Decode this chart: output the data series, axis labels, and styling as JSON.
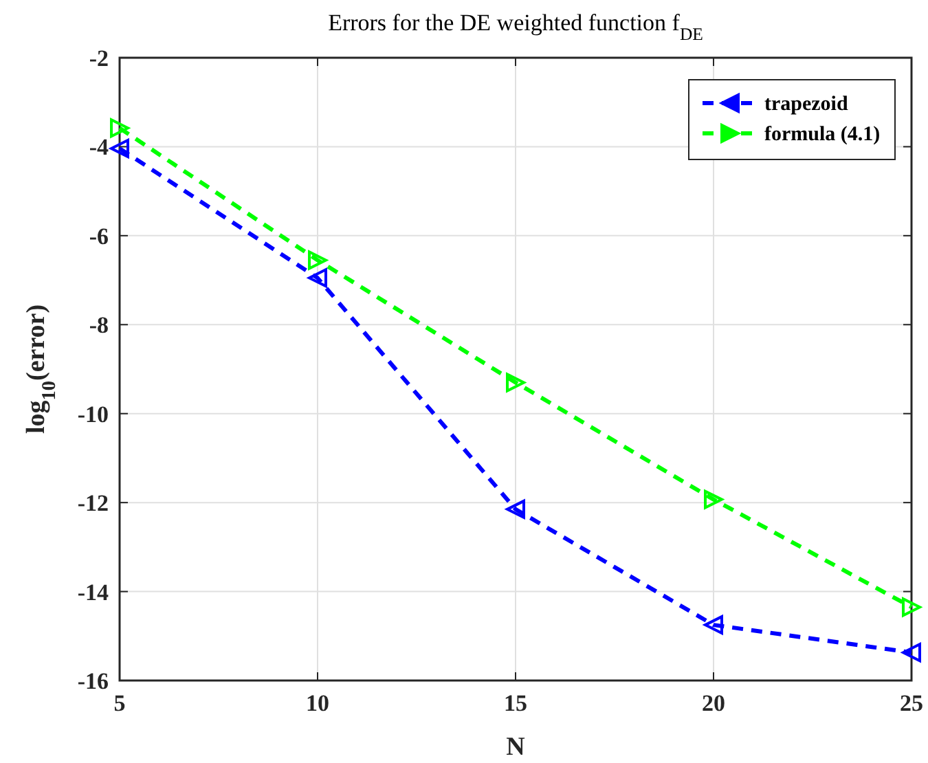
{
  "chart_data": {
    "type": "line",
    "title": "Errors for the DE weighted function f$_{DE}$",
    "xlabel": "N",
    "ylabel": "log$_{10}$(error)",
    "x": [
      5,
      10,
      15,
      20,
      25
    ],
    "series": [
      {
        "name": "trapezoid",
        "color": "#0000ff",
        "values": [
          -4.04,
          -6.95,
          -12.15,
          -14.75,
          -15.37
        ]
      },
      {
        "name": "formula (4.1)",
        "color": "#00ff00",
        "values": [
          -3.58,
          -6.55,
          -9.3,
          -11.93,
          -14.35
        ]
      }
    ],
    "xlim": [
      5,
      25
    ],
    "xticks": [
      5,
      10,
      15,
      20,
      25
    ],
    "ylim": [
      -16,
      -2
    ],
    "yticks": [
      -16,
      -14,
      -12,
      -10,
      -8,
      -6,
      -4,
      -2
    ],
    "grid": true,
    "legend": "top right",
    "marker": "triangle",
    "line_style": "dashed"
  }
}
